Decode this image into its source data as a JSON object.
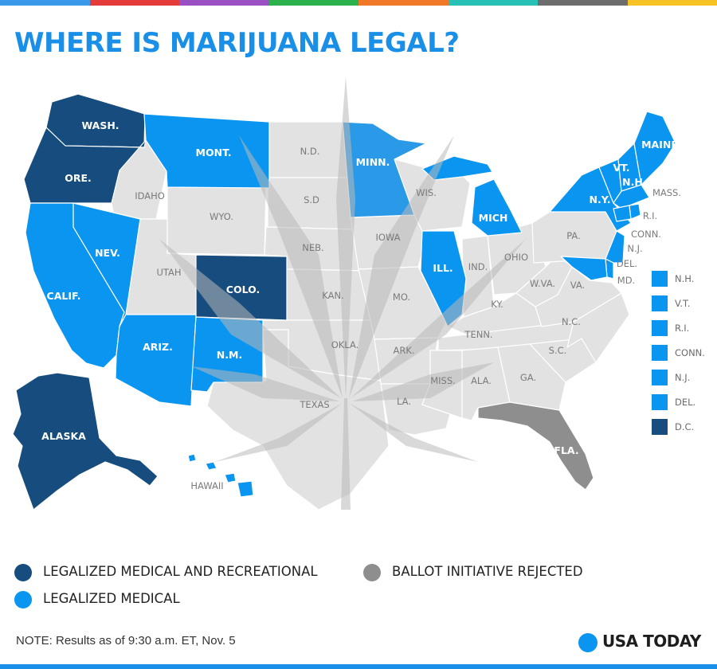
{
  "colors": {
    "recreational": "#164d7e",
    "medical": "#0a95f0",
    "medical_light": "#2a9ae8",
    "rejected": "#8e8e8e",
    "none": "#e2e2e2",
    "border": "#ffffff",
    "title": "#1a8fe8",
    "leaf": "#b9b9b9",
    "top_bar": [
      "#3a99ea",
      "#e53a3a",
      "#9a4fc2",
      "#2bb24c",
      "#f07828",
      "#27c1b5",
      "#6d6d6d",
      "#f6c224"
    ],
    "bottom_bar": "#1a8fe8"
  },
  "title": "WHERE IS MARIJUANA LEGAL?",
  "icons": {
    "leaf": "marijuana-leaf-icon",
    "brand": "usa-today-circle-icon"
  },
  "map_labels": {
    "wa": "WASH.",
    "or": "ORE.",
    "ca": "CALIF.",
    "nv": "NEV.",
    "id": "IDAHO",
    "mt": "MONT.",
    "wy": "WYO.",
    "ut": "UTAH",
    "co": "COLO.",
    "az": "ARIZ.",
    "nm": "N.M.",
    "nd": "N.D.",
    "sd": "S.D",
    "ne": "NEB.",
    "ks": "KAN.",
    "ok": "OKLA.",
    "tx": "TEXAS",
    "mn": "MINN.",
    "ia": "IOWA",
    "mo": "MO.",
    "ar": "ARK.",
    "la": "LA.",
    "wi": "WIS.",
    "il": "ILL.",
    "mi": "MICH",
    "in": "IND.",
    "oh": "OHIO",
    "ky": "KY.",
    "tn": "TENN.",
    "ms": "MISS.",
    "al": "ALA.",
    "ga": "GA.",
    "fl": "FLA.",
    "sc": "S.C.",
    "nc": "N.C.",
    "va": "VA.",
    "wv": "W.VA.",
    "pa": "PA.",
    "ny": "N.Y.",
    "vt": "VT.",
    "nh": "N.H",
    "me": "MAINE",
    "ma": "MASS.",
    "ri": "R.I.",
    "ct": "CONN.",
    "nj": "N.J.",
    "de": "DEL.",
    "md": "MD.",
    "ak": "ALASKA",
    "hi": "HAWAII"
  },
  "small_states_key": [
    {
      "label": "N.H.",
      "status": "medical"
    },
    {
      "label": "V.T.",
      "status": "medical"
    },
    {
      "label": "R.I.",
      "status": "medical"
    },
    {
      "label": "CONN.",
      "status": "medical"
    },
    {
      "label": "N.J.",
      "status": "medical"
    },
    {
      "label": "DEL.",
      "status": "medical"
    },
    {
      "label": "D.C.",
      "status": "recreational"
    }
  ],
  "legend": [
    {
      "label": "LEGALIZED MEDICAL AND RECREATIONAL",
      "status": "recreational"
    },
    {
      "label": "LEGALIZED MEDICAL",
      "status": "medical"
    },
    {
      "label": "BALLOT INITIATIVE REJECTED",
      "status": "rejected"
    }
  ],
  "note": "NOTE: Results as of 9:30 a.m. ET, Nov. 5",
  "brand": "USA TODAY"
}
